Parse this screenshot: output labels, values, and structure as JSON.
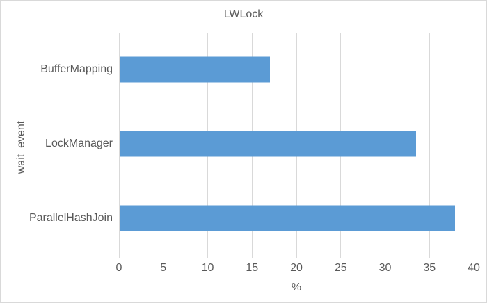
{
  "chart_data": {
    "type": "bar",
    "orientation": "horizontal",
    "title": "LWLock",
    "categories": [
      "BufferMapping",
      "LockManager",
      "ParallelHashJoin"
    ],
    "values": [
      17,
      33.5,
      37.9
    ],
    "xlabel": "%",
    "ylabel": "wait_event",
    "xlim": [
      0,
      40
    ],
    "xticks": [
      0,
      5,
      10,
      15,
      20,
      25,
      30,
      35,
      40
    ],
    "grid": "vertical-gridlines",
    "legend": "none",
    "colors": {
      "bar": "#5B9BD5",
      "gridline": "#D9D9D9",
      "text": "#595959",
      "chart_border": "#D9D9D9",
      "background": "#FFFFFF"
    }
  }
}
